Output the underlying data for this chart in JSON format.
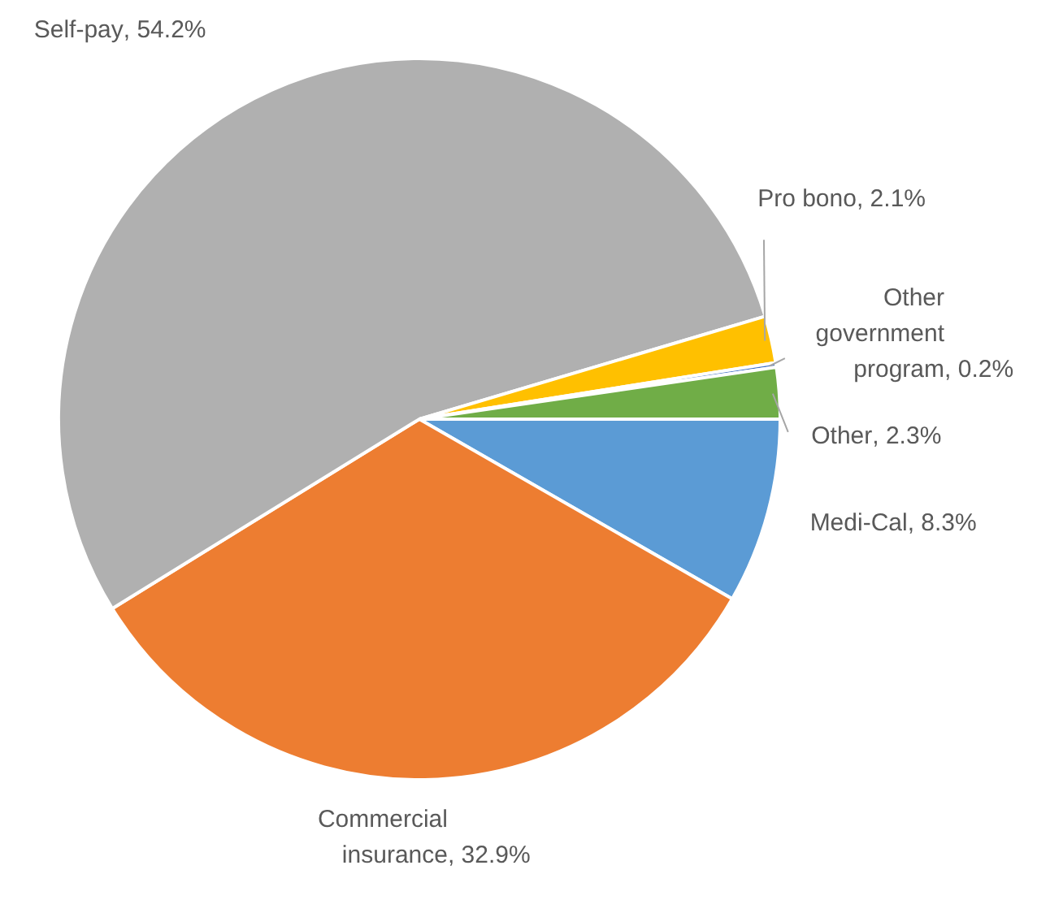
{
  "chart_data": {
    "type": "pie",
    "categories": [
      "Medi-Cal",
      "Commercial insurance",
      "Self-pay",
      "Pro bono",
      "Other government program",
      "Other"
    ],
    "values": [
      8.3,
      32.9,
      54.2,
      2.1,
      0.2,
      2.3
    ],
    "colors": [
      "#5b9bd5",
      "#ed7d31",
      "#b0b0b0",
      "#ffc000",
      "#4472c4",
      "#70ad47"
    ],
    "value_labels": [
      ", 8.3%",
      ", 32.9%",
      ", 54.2%",
      ", 2.1%",
      ", 0.2%",
      ", 2.3%"
    ],
    "legend": false
  }
}
